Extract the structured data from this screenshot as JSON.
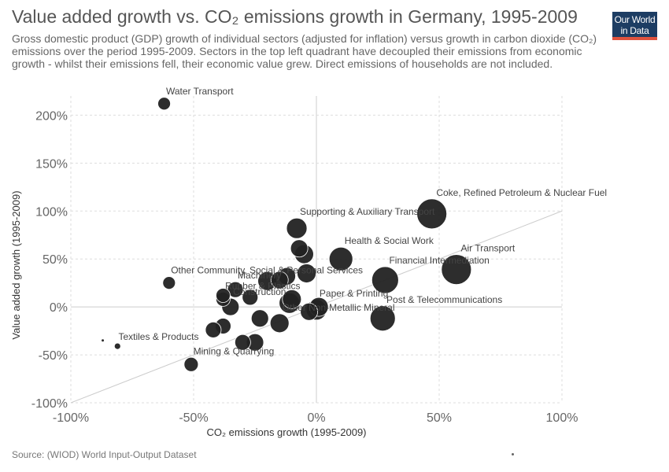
{
  "header": {
    "title": "Value added growth vs. CO₂ emissions growth in Germany, 1995-2009",
    "subtitle": "Gross domestic product (GDP) growth of individual sectors (adjusted for inflation) versus growth in carbon dioxide (CO₂) emissions over the period 1995-2009. Sectors in the top left quadrant have decoupled their emissions from economic growth - whilst their emissions fell, their economic value grew. Direct emissions of households are not included."
  },
  "logo": {
    "line1": "Our World",
    "line2": "in Data"
  },
  "footer": {
    "source": "Source: (WIOD) World Input-Output Dataset"
  },
  "colors": {
    "point": "#222222",
    "point_stroke": "#ffffff",
    "grid": "#dddddd",
    "diagonal": "#cccccc",
    "zero": "#cccccc"
  },
  "chart_data": {
    "type": "scatter",
    "xlabel": "CO₂ emissions growth (1995-2009)",
    "ylabel": "Value added growth (1995-2009)",
    "xlim": [
      -100,
      100
    ],
    "ylim": [
      -100,
      220
    ],
    "x_ticks": [
      -100,
      -50,
      0,
      50,
      100
    ],
    "x_tick_labels": [
      "-100%",
      "-50%",
      "0%",
      "50%",
      "100%"
    ],
    "y_ticks": [
      -100,
      -50,
      0,
      50,
      100,
      150,
      200
    ],
    "y_tick_labels": [
      "-100%",
      "-50%",
      "0%",
      "50%",
      "100%",
      "150%",
      "200%"
    ],
    "grid": true,
    "diagonal_reference_line": true,
    "points": [
      {
        "label": "Water Transport",
        "x": -62,
        "y": 212,
        "size": 8
      },
      {
        "label": "Supporting & Auxiliary Transport",
        "x": -8,
        "y": 82,
        "size": 13
      },
      {
        "label": "Coke, Refined Petroleum & Nuclear Fuel",
        "x": 47,
        "y": 97,
        "size": 19
      },
      {
        "label": "Health & Social Work",
        "x": 10,
        "y": 50,
        "size": 15
      },
      {
        "label": "Air Transport",
        "x": 57,
        "y": 39,
        "size": 19
      },
      {
        "label": "Other Community, Social & Personal Services",
        "x": -60,
        "y": 25,
        "size": 8
      },
      {
        "label": "Machinery",
        "x": -33,
        "y": 18,
        "size": 10
      },
      {
        "label": "Financial Intermediation",
        "x": 28,
        "y": 28,
        "size": 17
      },
      {
        "label": "Paper & Printing",
        "x": 0,
        "y": -3,
        "size": 13
      },
      {
        "label": "Post & Telecommunications",
        "x": 27,
        "y": -12,
        "size": 16
      },
      {
        "label": "Rubber & Plastics",
        "x": -38,
        "y": 8,
        "size": 9
      },
      {
        "label": "Construction",
        "x": -35,
        "y": 0,
        "size": 11
      },
      {
        "label": "Other Non-Metallic Mineral",
        "x": -15,
        "y": -17,
        "size": 12
      },
      {
        "label": "Textiles & Products",
        "x": -81,
        "y": -41,
        "size": 4
      },
      {
        "label": "Mining & Quarrying",
        "x": -51,
        "y": -60,
        "size": 9
      },
      {
        "label": "",
        "x": -7,
        "y": 61,
        "size": 11
      },
      {
        "label": "",
        "x": -5,
        "y": 55,
        "size": 12
      },
      {
        "label": "",
        "x": -4,
        "y": 35,
        "size": 12
      },
      {
        "label": "",
        "x": -12,
        "y": 32,
        "size": 11
      },
      {
        "label": "",
        "x": -20,
        "y": 27,
        "size": 12
      },
      {
        "label": "",
        "x": -15,
        "y": 28,
        "size": 11
      },
      {
        "label": "",
        "x": -27,
        "y": 10,
        "size": 10
      },
      {
        "label": "",
        "x": -38,
        "y": 12,
        "size": 9
      },
      {
        "label": "",
        "x": -10,
        "y": 8,
        "size": 12
      },
      {
        "label": "",
        "x": -11,
        "y": 4,
        "size": 13
      },
      {
        "label": "",
        "x": 1,
        "y": 0,
        "size": 12
      },
      {
        "label": "",
        "x": -3,
        "y": -5,
        "size": 11
      },
      {
        "label": "",
        "x": -23,
        "y": -12,
        "size": 11
      },
      {
        "label": "",
        "x": -38,
        "y": -20,
        "size": 10
      },
      {
        "label": "",
        "x": -42,
        "y": -24,
        "size": 10
      },
      {
        "label": "",
        "x": -25,
        "y": -37,
        "size": 11
      },
      {
        "label": "",
        "x": -30,
        "y": -37,
        "size": 10
      },
      {
        "label": "",
        "x": -87,
        "y": -35,
        "size": 1.5
      }
    ]
  }
}
